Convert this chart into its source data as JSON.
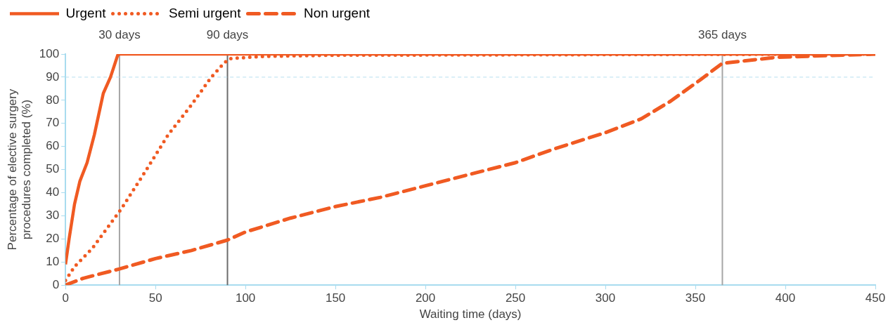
{
  "chart_data": {
    "type": "line",
    "xlabel": "Waiting time (days)",
    "ylabel": "Percentage of elective surgery\nprocedures completed (%)",
    "xlim": [
      0,
      450
    ],
    "xticks": [
      0,
      50,
      100,
      150,
      200,
      250,
      300,
      350,
      400,
      450
    ],
    "ylim": [
      0,
      100
    ],
    "yticks": [
      0,
      10,
      20,
      30,
      40,
      50,
      60,
      70,
      80,
      90,
      100
    ],
    "grid": false,
    "legend": "top",
    "marker": "none",
    "series": [
      {
        "name": "Urgent",
        "color": "#f05a22",
        "line_style": "solid",
        "x": [
          0,
          2,
          5,
          8,
          12,
          16,
          21,
          25,
          29,
          30,
          450
        ],
        "values": [
          9,
          20,
          35,
          45,
          53,
          65,
          83,
          90,
          99.5,
          100,
          100
        ]
      },
      {
        "name": "Semi urgent",
        "color": "#f05a22",
        "line_style": "dotted",
        "x": [
          0,
          5,
          15,
          31,
          45,
          57,
          70,
          81,
          88,
          91,
          110,
          150,
          450
        ],
        "values": [
          2,
          8,
          16,
          33,
          50,
          65,
          78,
          90,
          96,
          98,
          99,
          99.5,
          100
        ]
      },
      {
        "name": "Non urgent",
        "color": "#f05a22",
        "line_style": "dashed",
        "x": [
          0,
          10,
          30,
          50,
          70,
          90,
          100,
          125,
          150,
          175,
          200,
          225,
          250,
          271,
          300,
          320,
          336,
          353,
          365,
          395,
          450
        ],
        "values": [
          0,
          3,
          7,
          11.5,
          15,
          19.5,
          23,
          29,
          34,
          38,
          43,
          48,
          53,
          58.8,
          66,
          72,
          79.5,
          89,
          96,
          98.6,
          100
        ]
      }
    ],
    "ref_lines": [
      {
        "axis": "x",
        "value": 30,
        "label": "30 days",
        "color": "#a6a6a6",
        "line_style": "solid"
      },
      {
        "axis": "x",
        "value": 90,
        "label": "90 days",
        "color": "#6d6d6d",
        "line_style": "solid"
      },
      {
        "axis": "x",
        "value": 365,
        "label": "365 days",
        "color": "#a6a6a6",
        "line_style": "solid"
      },
      {
        "axis": "y",
        "value": 90,
        "label": null,
        "color": "#b5dff0",
        "line_style": "dashed"
      }
    ]
  }
}
